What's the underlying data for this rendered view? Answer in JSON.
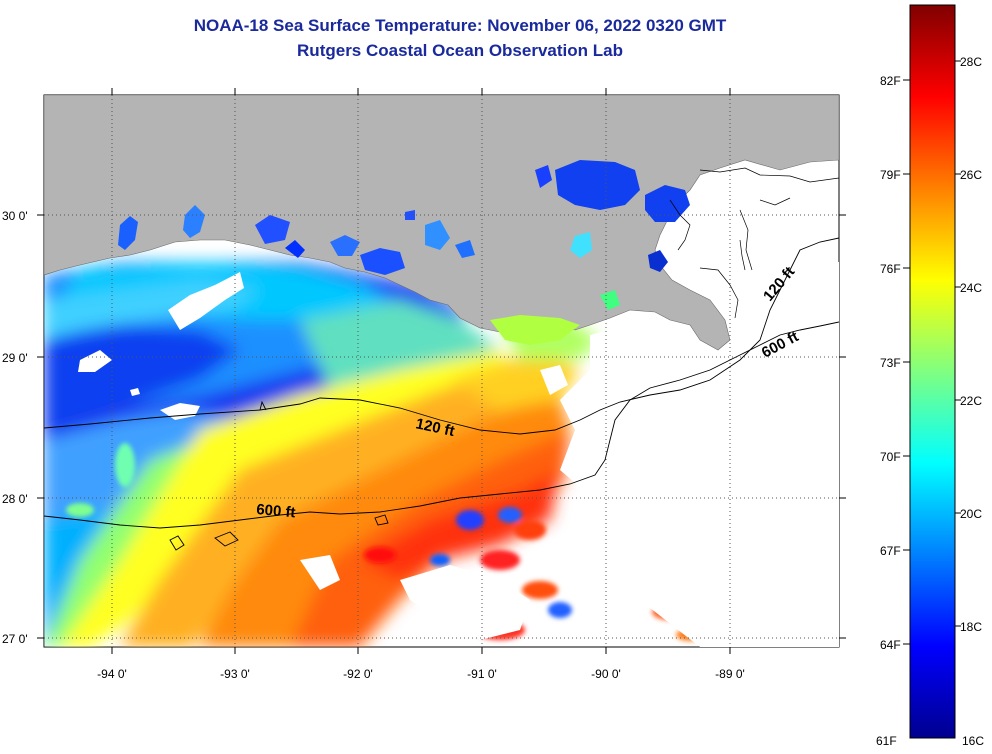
{
  "header": {
    "title_line1": "NOAA-18 Sea Surface Temperature:  November 06, 2022 0320 GMT",
    "title_line2": "Rutgers Coastal Ocean Observation Lab"
  },
  "map": {
    "lon_ticks": [
      "-94 0'",
      "-93 0'",
      "-92 0'",
      "-91 0'",
      "-90 0'",
      "-89 0'"
    ],
    "lat_ticks": [
      "30 0'",
      "29 0'",
      "28 0'",
      "27 0'"
    ],
    "contours": [
      {
        "label": "120 ft"
      },
      {
        "label": "600 ft"
      },
      {
        "label": "120 ft"
      },
      {
        "label": "600 ft"
      }
    ],
    "land_color": "#b4b4b4",
    "nodata_color": "#ffffff"
  },
  "colorbar": {
    "range_c": [
      16,
      29
    ],
    "fahrenheit_labels": [
      "82F",
      "79F",
      "76F",
      "73F",
      "70F",
      "67F",
      "64F",
      "61F"
    ],
    "celsius_labels": [
      "28C",
      "26C",
      "24C",
      "22C",
      "20C",
      "18C",
      "16C"
    ],
    "stops": [
      "#00008f",
      "#0000ff",
      "#0080ff",
      "#00ffff",
      "#80ff80",
      "#ffff00",
      "#ff8000",
      "#ff0000",
      "#800000"
    ]
  }
}
